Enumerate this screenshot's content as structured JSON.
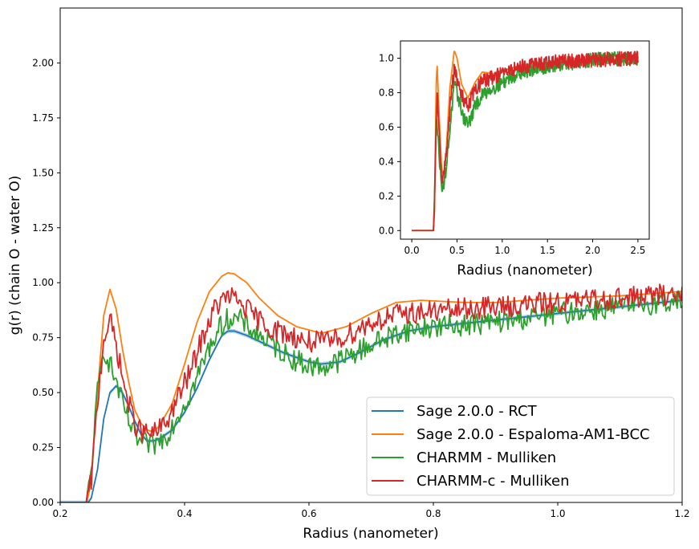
{
  "chart_data": [
    {
      "id": "main",
      "type": "line",
      "xlabel": "Radius (nanometer)",
      "ylabel": "g(r) (chain O - water O)",
      "xlim": [
        0.2,
        1.2
      ],
      "ylim": [
        0.0,
        2.25
      ],
      "xticks": [
        "0.2",
        "0.4",
        "0.6",
        "0.8",
        "1.0",
        "1.2"
      ],
      "yticks": [
        "0.00",
        "0.25",
        "0.50",
        "0.75",
        "1.00",
        "1.25",
        "1.50",
        "1.75",
        "2.00"
      ],
      "legend_position": "lower-right",
      "series": [
        {
          "name": "Sage 2.0.0 - RCT",
          "color": "#1f77b4",
          "noise": 0.0,
          "band": true,
          "points": [
            [
              0.2,
              0
            ],
            [
              0.245,
              0
            ],
            [
              0.25,
              0.02
            ],
            [
              0.26,
              0.15
            ],
            [
              0.27,
              0.38
            ],
            [
              0.28,
              0.5
            ],
            [
              0.29,
              0.53
            ],
            [
              0.3,
              0.5
            ],
            [
              0.31,
              0.44
            ],
            [
              0.32,
              0.37
            ],
            [
              0.33,
              0.31
            ],
            [
              0.34,
              0.28
            ],
            [
              0.35,
              0.28
            ],
            [
              0.36,
              0.29
            ],
            [
              0.38,
              0.33
            ],
            [
              0.4,
              0.41
            ],
            [
              0.42,
              0.52
            ],
            [
              0.44,
              0.65
            ],
            [
              0.46,
              0.76
            ],
            [
              0.47,
              0.78
            ],
            [
              0.48,
              0.78
            ],
            [
              0.5,
              0.76
            ],
            [
              0.53,
              0.72
            ],
            [
              0.56,
              0.68
            ],
            [
              0.6,
              0.64
            ],
            [
              0.62,
              0.63
            ],
            [
              0.65,
              0.64
            ],
            [
              0.68,
              0.68
            ],
            [
              0.72,
              0.74
            ],
            [
              0.76,
              0.78
            ],
            [
              0.8,
              0.8
            ],
            [
              0.9,
              0.83
            ],
            [
              1.0,
              0.86
            ],
            [
              1.1,
              0.89
            ],
            [
              1.2,
              0.92
            ]
          ]
        },
        {
          "name": "Sage 2.0.0 - Espaloma-AM1-BCC",
          "color": "#ff7f0e",
          "noise": 0.0,
          "band": false,
          "points": [
            [
              0.2,
              0
            ],
            [
              0.243,
              0
            ],
            [
              0.25,
              0.1
            ],
            [
              0.26,
              0.5
            ],
            [
              0.27,
              0.85
            ],
            [
              0.28,
              0.97
            ],
            [
              0.29,
              0.88
            ],
            [
              0.3,
              0.7
            ],
            [
              0.31,
              0.55
            ],
            [
              0.32,
              0.42
            ],
            [
              0.33,
              0.36
            ],
            [
              0.34,
              0.33
            ],
            [
              0.35,
              0.32
            ],
            [
              0.36,
              0.35
            ],
            [
              0.38,
              0.45
            ],
            [
              0.4,
              0.63
            ],
            [
              0.42,
              0.82
            ],
            [
              0.44,
              0.96
            ],
            [
              0.46,
              1.03
            ],
            [
              0.47,
              1.045
            ],
            [
              0.48,
              1.04
            ],
            [
              0.5,
              1.0
            ],
            [
              0.52,
              0.93
            ],
            [
              0.55,
              0.85
            ],
            [
              0.58,
              0.8
            ],
            [
              0.62,
              0.77
            ],
            [
              0.66,
              0.8
            ],
            [
              0.7,
              0.86
            ],
            [
              0.74,
              0.91
            ],
            [
              0.78,
              0.92
            ],
            [
              0.85,
              0.91
            ],
            [
              0.9,
              0.91
            ],
            [
              1.0,
              0.93
            ],
            [
              1.1,
              0.94
            ],
            [
              1.2,
              0.96
            ]
          ]
        },
        {
          "name": "CHARMM - Mulliken",
          "color": "#2ca02c",
          "noise": 0.032,
          "band": false,
          "points": [
            [
              0.2,
              0
            ],
            [
              0.243,
              0
            ],
            [
              0.25,
              0.15
            ],
            [
              0.26,
              0.5
            ],
            [
              0.27,
              0.7
            ],
            [
              0.28,
              0.63
            ],
            [
              0.29,
              0.55
            ],
            [
              0.3,
              0.45
            ],
            [
              0.31,
              0.37
            ],
            [
              0.32,
              0.3
            ],
            [
              0.33,
              0.27
            ],
            [
              0.35,
              0.26
            ],
            [
              0.37,
              0.3
            ],
            [
              0.39,
              0.4
            ],
            [
              0.41,
              0.5
            ],
            [
              0.43,
              0.64
            ],
            [
              0.45,
              0.77
            ],
            [
              0.47,
              0.84
            ],
            [
              0.49,
              0.83
            ],
            [
              0.51,
              0.78
            ],
            [
              0.54,
              0.72
            ],
            [
              0.57,
              0.66
            ],
            [
              0.6,
              0.62
            ],
            [
              0.63,
              0.62
            ],
            [
              0.66,
              0.66
            ],
            [
              0.7,
              0.72
            ],
            [
              0.75,
              0.78
            ],
            [
              0.8,
              0.8
            ],
            [
              0.9,
              0.82
            ],
            [
              1.0,
              0.86
            ],
            [
              1.1,
              0.89
            ],
            [
              1.2,
              0.92
            ]
          ]
        },
        {
          "name": "CHARMM-c - Mulliken",
          "color": "#d62728",
          "noise": 0.032,
          "band": false,
          "points": [
            [
              0.2,
              0
            ],
            [
              0.243,
              0
            ],
            [
              0.25,
              0.1
            ],
            [
              0.26,
              0.45
            ],
            [
              0.27,
              0.75
            ],
            [
              0.28,
              0.83
            ],
            [
              0.29,
              0.72
            ],
            [
              0.3,
              0.57
            ],
            [
              0.31,
              0.45
            ],
            [
              0.32,
              0.36
            ],
            [
              0.33,
              0.32
            ],
            [
              0.35,
              0.31
            ],
            [
              0.37,
              0.36
            ],
            [
              0.39,
              0.48
            ],
            [
              0.41,
              0.6
            ],
            [
              0.43,
              0.76
            ],
            [
              0.45,
              0.89
            ],
            [
              0.47,
              0.94
            ],
            [
              0.49,
              0.91
            ],
            [
              0.51,
              0.85
            ],
            [
              0.54,
              0.79
            ],
            [
              0.57,
              0.76
            ],
            [
              0.6,
              0.73
            ],
            [
              0.63,
              0.73
            ],
            [
              0.66,
              0.76
            ],
            [
              0.7,
              0.82
            ],
            [
              0.75,
              0.86
            ],
            [
              0.8,
              0.87
            ],
            [
              0.9,
              0.89
            ],
            [
              1.0,
              0.91
            ],
            [
              1.1,
              0.93
            ],
            [
              1.2,
              0.95
            ]
          ]
        }
      ]
    },
    {
      "id": "inset",
      "type": "line",
      "xlabel": "Radius (nanometer)",
      "ylabel": "",
      "xlim": [
        -0.125,
        2.625
      ],
      "ylim": [
        -0.05,
        1.1
      ],
      "xticks": [
        "0.0",
        "0.5",
        "1.0",
        "1.5",
        "2.0",
        "2.5"
      ],
      "yticks": [
        "0.0",
        "0.2",
        "0.4",
        "0.6",
        "0.8",
        "1.0"
      ],
      "series": [
        {
          "name": "Sage 2.0.0 - Espaloma-AM1-BCC",
          "color": "#ff7f0e",
          "noise": 0.0,
          "points": [
            [
              0,
              0
            ],
            [
              0.24,
              0
            ],
            [
              0.25,
              0.1
            ],
            [
              0.27,
              0.85
            ],
            [
              0.28,
              0.97
            ],
            [
              0.3,
              0.7
            ],
            [
              0.33,
              0.36
            ],
            [
              0.35,
              0.32
            ],
            [
              0.38,
              0.45
            ],
            [
              0.42,
              0.82
            ],
            [
              0.47,
              1.045
            ],
            [
              0.5,
              1.0
            ],
            [
              0.55,
              0.85
            ],
            [
              0.62,
              0.77
            ],
            [
              0.7,
              0.86
            ],
            [
              0.78,
              0.92
            ],
            [
              0.9,
              0.91
            ],
            [
              1.2,
              0.96
            ],
            [
              1.6,
              0.98
            ],
            [
              2.0,
              0.99
            ],
            [
              2.5,
              1.0
            ]
          ]
        },
        {
          "name": "CHARMM - Mulliken",
          "color": "#2ca02c",
          "noise": 0.03,
          "points": [
            [
              0,
              0
            ],
            [
              0.24,
              0
            ],
            [
              0.25,
              0.15
            ],
            [
              0.27,
              0.7
            ],
            [
              0.3,
              0.45
            ],
            [
              0.33,
              0.27
            ],
            [
              0.35,
              0.26
            ],
            [
              0.39,
              0.4
            ],
            [
              0.43,
              0.64
            ],
            [
              0.47,
              0.84
            ],
            [
              0.51,
              0.78
            ],
            [
              0.57,
              0.66
            ],
            [
              0.63,
              0.62
            ],
            [
              0.7,
              0.72
            ],
            [
              0.8,
              0.8
            ],
            [
              1.0,
              0.86
            ],
            [
              1.2,
              0.92
            ],
            [
              1.5,
              0.95
            ],
            [
              2.0,
              0.99
            ],
            [
              2.5,
              1.0
            ]
          ]
        },
        {
          "name": "CHARMM-c - Mulliken",
          "color": "#d62728",
          "noise": 0.03,
          "points": [
            [
              0,
              0
            ],
            [
              0.24,
              0
            ],
            [
              0.25,
              0.1
            ],
            [
              0.28,
              0.83
            ],
            [
              0.3,
              0.57
            ],
            [
              0.33,
              0.32
            ],
            [
              0.35,
              0.31
            ],
            [
              0.39,
              0.48
            ],
            [
              0.43,
              0.76
            ],
            [
              0.47,
              0.94
            ],
            [
              0.51,
              0.85
            ],
            [
              0.57,
              0.76
            ],
            [
              0.63,
              0.73
            ],
            [
              0.7,
              0.82
            ],
            [
              0.8,
              0.87
            ],
            [
              1.0,
              0.91
            ],
            [
              1.2,
              0.95
            ],
            [
              1.6,
              0.98
            ],
            [
              2.0,
              0.99
            ],
            [
              2.5,
              1.0
            ]
          ]
        }
      ]
    }
  ]
}
